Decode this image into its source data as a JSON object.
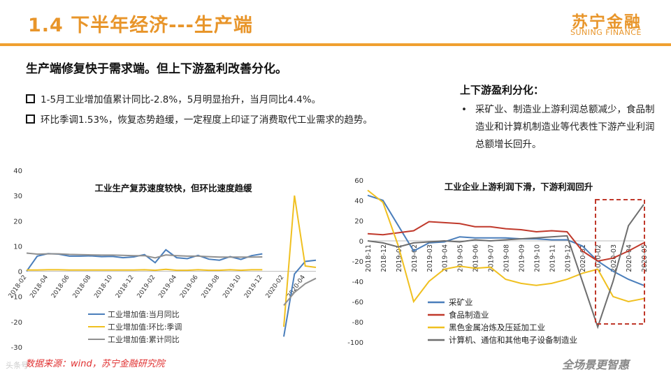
{
  "header": {
    "title": "1.4 下半年经济---生产端",
    "logo_cn": "苏宁金融",
    "logo_en": "SUNING FINANCE"
  },
  "lead": "生产端修复快于需求端。但上下游盈利改善分化。",
  "bullets": [
    "1-5月工业增加值累计同比-2.8%，5月明显抬升，当月同比4.4%。",
    "环比季调1.53%，恢复态势趋缓，一定程度上印证了消费取代工业需求的趋势。"
  ],
  "right_box": {
    "title": "上下游盈利分化：",
    "bullet": "采矿业、制造业上游利润总额减少，食品制造业和计算机制造业等代表性下游产业利润总额增长回升。"
  },
  "footer": {
    "source": "数据来源：wind，苏宁金融研究院",
    "slogan": "全场景更智惠",
    "watermark": "头条号"
  },
  "colors": {
    "accent": "#e8952a",
    "series_blue": "#4a7ebb",
    "series_yellow": "#f0c020",
    "series_gray": "#909090",
    "series_red": "#c0392b",
    "series_darkgray": "#6e6e6e",
    "highlight": "#c0392b"
  },
  "chart_data": [
    {
      "type": "line",
      "title": "工业生产复苏速度较快，但环比速度趋缓",
      "ylim": [
        -30,
        40
      ],
      "yticks": [
        -30,
        -20,
        -10,
        0,
        10,
        20,
        30,
        40
      ],
      "x": [
        "2018-02",
        "2018-03",
        "2018-04",
        "2018-05",
        "2018-06",
        "2018-07",
        "2018-08",
        "2018-09",
        "2018-10",
        "2018-11",
        "2018-12",
        "2019-01",
        "2019-02",
        "2019-03",
        "2019-04",
        "2019-05",
        "2019-06",
        "2019-07",
        "2019-08",
        "2019-09",
        "2019-10",
        "2019-11",
        "2019-12",
        "2020-01",
        "2020-02",
        "2020-03",
        "2020-04",
        "2020-05"
      ],
      "xticklabels": [
        "2018-02",
        "2018-04",
        "2018-06",
        "2018-08",
        "2018-10",
        "2018-12",
        "2019-02",
        "2019-04",
        "2019-06",
        "2019-08",
        "2019-10",
        "2019-12",
        "2020-02",
        "2020-04"
      ],
      "series": [
        {
          "name": "工业增加值:当月同比",
          "values": [
            0,
            6.0,
            7.0,
            6.8,
            6.0,
            6.0,
            6.1,
            5.8,
            5.9,
            5.4,
            5.7,
            6.6,
            3.4,
            8.5,
            5.4,
            5.0,
            6.3,
            4.8,
            4.4,
            5.8,
            4.7,
            6.2,
            6.9,
            null,
            -25.9,
            -1.1,
            3.9,
            4.4
          ]
        },
        {
          "name": "工业增加值:环比:季调",
          "values": [
            0.5,
            0.5,
            0.6,
            0.6,
            0.5,
            0.5,
            0.5,
            0.5,
            0.5,
            0.5,
            0.5,
            0.6,
            0.4,
            0.8,
            0.4,
            0.4,
            0.6,
            0.4,
            0.4,
            0.6,
            0.4,
            0.6,
            0.6,
            null,
            -22.0,
            30.0,
            2.1,
            1.53
          ]
        },
        {
          "name": "工业增加值:累计同比",
          "values": [
            7.2,
            6.8,
            6.9,
            6.9,
            6.7,
            6.6,
            6.5,
            6.4,
            6.4,
            6.3,
            6.2,
            6.2,
            5.3,
            6.5,
            6.2,
            6.0,
            6.0,
            5.8,
            5.6,
            5.6,
            5.6,
            5.6,
            5.7,
            null,
            -13.5,
            -8.4,
            -4.9,
            -2.8
          ]
        }
      ]
    },
    {
      "type": "line",
      "title": "工业企业上游利润下滑，下游利润回升",
      "ylim": [
        -100,
        60
      ],
      "yticks": [
        -100,
        -80,
        -60,
        -40,
        -20,
        0,
        20,
        40,
        60
      ],
      "x": [
        "2018-11",
        "2018-12",
        "2019-01",
        "2019-02",
        "2019-03",
        "2019-04",
        "2019-05",
        "2019-06",
        "2019-07",
        "2019-08",
        "2019-09",
        "2019-10",
        "2019-11",
        "2019-12",
        "2020-01",
        "2020-02",
        "2020-03",
        "2020-04",
        "2020-05"
      ],
      "series": [
        {
          "name": "采矿业",
          "values": [
            45,
            40,
            15,
            -10,
            -2,
            -1,
            4,
            3,
            3,
            3,
            2,
            2,
            1,
            1,
            -5,
            -20,
            -30,
            -38,
            -44
          ]
        },
        {
          "name": "食品制造业",
          "values": [
            7,
            6,
            8,
            10,
            19,
            18,
            17,
            14,
            14,
            12,
            11,
            9,
            10,
            9,
            -10,
            -20,
            -17,
            -10,
            -2
          ]
        },
        {
          "name": "黑色金属冶炼及压延加工业",
          "values": [
            50,
            38,
            -5,
            -60,
            -40,
            -28,
            -25,
            -27,
            -26,
            -38,
            -42,
            -44,
            -42,
            -38,
            -32,
            -28,
            -55,
            -60,
            -57
          ]
        },
        {
          "name": "计算机、通信和其他电子设备制造业",
          "values": [
            0,
            -2,
            -6,
            -2,
            -1,
            0,
            -1,
            1,
            0,
            1,
            2,
            3,
            4,
            5,
            -40,
            -85,
            -40,
            15,
            36
          ]
        }
      ]
    }
  ]
}
